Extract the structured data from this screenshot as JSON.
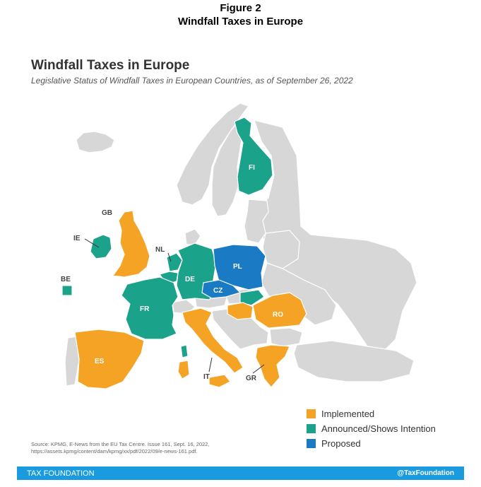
{
  "figure": {
    "label": "Figure 2",
    "title": "Windfall Taxes in Europe"
  },
  "map": {
    "title": "Windfall Taxes in Europe",
    "subtitle": "Legislative Status of Windfall Taxes in European Countries, as of September 26, 2022",
    "colors": {
      "implemented": "#f4a325",
      "announced": "#1aa38a",
      "proposed": "#1a7bc4",
      "other": "#d7d7d7"
    },
    "countries": [
      {
        "code": "GB",
        "status": "implemented"
      },
      {
        "code": "IE",
        "status": "announced"
      },
      {
        "code": "BE",
        "status": "announced"
      },
      {
        "code": "NL",
        "status": "announced"
      },
      {
        "code": "DE",
        "status": "announced"
      },
      {
        "code": "FR",
        "status": "announced"
      },
      {
        "code": "ES",
        "status": "implemented"
      },
      {
        "code": "IT",
        "status": "implemented"
      },
      {
        "code": "GR",
        "status": "implemented"
      },
      {
        "code": "RO",
        "status": "implemented"
      },
      {
        "code": "PL",
        "status": "proposed"
      },
      {
        "code": "CZ",
        "status": "proposed"
      },
      {
        "code": "FI",
        "status": "announced"
      }
    ]
  },
  "legend": {
    "implemented": "Implemented",
    "announced": "Announced/Shows Intention",
    "proposed": "Proposed"
  },
  "source": {
    "line1": "Source: KPMG, E-News from the EU Tax Centre. Issue 161, Sept. 16, 2022,",
    "line2": "https://assets.kpmg/content/dam/kpmg/xx/pdf/2022/09/e-news-161.pdf."
  },
  "footer": {
    "left": "TAX FOUNDATION",
    "right": "@TaxFoundation"
  }
}
